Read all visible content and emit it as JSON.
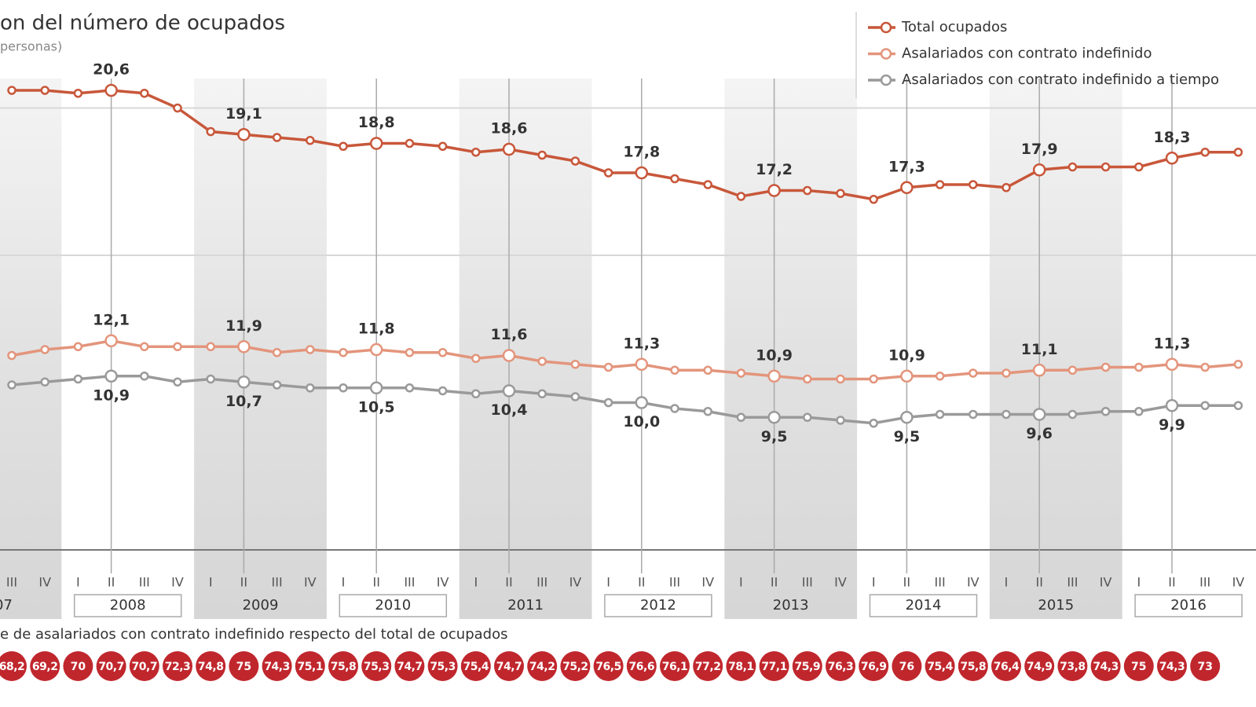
{
  "chart_data": {
    "type": "line",
    "title": "on del número de ocupados",
    "subtitle": "personas)",
    "categories": [
      "III",
      "IV",
      "I",
      "II",
      "III",
      "IV",
      "I",
      "II",
      "III",
      "IV",
      "I",
      "II",
      "III",
      "IV",
      "I",
      "II",
      "III",
      "IV",
      "I",
      "II",
      "III",
      "IV",
      "I",
      "II",
      "III",
      "IV",
      "I",
      "II",
      "III",
      "IV",
      "I",
      "II",
      "III",
      "IV",
      "I",
      "II",
      "III",
      "IV"
    ],
    "years": [
      "07",
      "2008",
      "2009",
      "2010",
      "2011",
      "2012",
      "2013",
      "2014",
      "2015",
      "2016"
    ],
    "ylim": [
      5,
      22
    ],
    "yticks": [
      15,
      20
    ],
    "grid": true,
    "series": [
      {
        "name": "Total ocupados",
        "color": "#c8573a",
        "values": [
          20.6,
          20.6,
          20.5,
          20.6,
          20.5,
          20.0,
          19.2,
          19.1,
          19.0,
          18.9,
          18.7,
          18.8,
          18.8,
          18.7,
          18.5,
          18.6,
          18.4,
          18.2,
          17.8,
          17.8,
          17.6,
          17.4,
          17.0,
          17.2,
          17.2,
          17.1,
          16.9,
          17.3,
          17.4,
          17.4,
          17.3,
          17.9,
          18.0,
          18.0,
          18.0,
          18.3,
          18.5,
          18.5
        ],
        "value_labels": [
          null,
          null,
          null,
          "20,6",
          null,
          null,
          null,
          "19,1",
          null,
          null,
          null,
          "18,8",
          null,
          null,
          null,
          "18,6",
          null,
          null,
          null,
          "17,8",
          null,
          null,
          null,
          "17,2",
          null,
          null,
          null,
          "17,3",
          null,
          null,
          null,
          "17,9",
          null,
          null,
          null,
          "18,3",
          null,
          null
        ]
      },
      {
        "name": "Asalariados con contrato indefinido",
        "color": "#e3957c",
        "values": [
          11.6,
          11.8,
          11.9,
          12.1,
          11.9,
          11.9,
          11.9,
          11.9,
          11.7,
          11.8,
          11.7,
          11.8,
          11.7,
          11.7,
          11.5,
          11.6,
          11.4,
          11.3,
          11.2,
          11.3,
          11.1,
          11.1,
          11.0,
          10.9,
          10.8,
          10.8,
          10.8,
          10.9,
          10.9,
          11.0,
          11.0,
          11.1,
          11.1,
          11.2,
          11.2,
          11.3,
          11.2,
          11.3
        ],
        "value_labels": [
          null,
          null,
          null,
          "12,1",
          null,
          null,
          null,
          "11,9",
          null,
          null,
          null,
          "11,8",
          null,
          null,
          null,
          "11,6",
          null,
          null,
          null,
          "11,3",
          null,
          null,
          null,
          "10,9",
          null,
          null,
          null,
          "10,9",
          null,
          null,
          null,
          "11,1",
          null,
          null,
          null,
          "11,3",
          null,
          null
        ]
      },
      {
        "name": "Asalariados con contrato indefinido a tiempo",
        "color": "#9a9a9a",
        "values": [
          10.6,
          10.7,
          10.8,
          10.9,
          10.9,
          10.7,
          10.8,
          10.7,
          10.6,
          10.5,
          10.5,
          10.5,
          10.5,
          10.4,
          10.3,
          10.4,
          10.3,
          10.2,
          10.0,
          10.0,
          9.8,
          9.7,
          9.5,
          9.5,
          9.5,
          9.4,
          9.3,
          9.5,
          9.6,
          9.6,
          9.6,
          9.6,
          9.6,
          9.7,
          9.7,
          9.9,
          9.9,
          9.9
        ],
        "value_labels": [
          null,
          null,
          null,
          "10,9",
          null,
          null,
          null,
          "10,7",
          null,
          null,
          null,
          "10,5",
          null,
          null,
          null,
          "10,4",
          null,
          null,
          null,
          "10,0",
          null,
          null,
          null,
          "9,5",
          null,
          null,
          null,
          "9,5",
          null,
          null,
          null,
          "9,6",
          null,
          null,
          null,
          "9,9",
          null,
          null
        ]
      }
    ],
    "ratio": {
      "title": "e de asalariados con contrato indefinido respecto del total de ocupados",
      "color": "#c0272d",
      "values": [
        68.2,
        69.2,
        70,
        70.7,
        70.7,
        72.3,
        74.8,
        75,
        74.3,
        75.1,
        75.8,
        75.3,
        74.7,
        75.3,
        75.4,
        74.7,
        74.2,
        75.2,
        76.5,
        76.6,
        76.1,
        77.2,
        78.1,
        77.1,
        75.9,
        76.3,
        76.9,
        76,
        75.4,
        75.8,
        76.4,
        74.9,
        73.8,
        74.3,
        75,
        74.3,
        73,
        null
      ],
      "value_labels": [
        "68,2",
        "69,2",
        null,
        "70,7",
        "70,7",
        "72,3",
        "74,8",
        null,
        "74,3",
        "75,1",
        "75,8",
        "75,3",
        "74,7",
        "75,3",
        "75,4",
        "74,7",
        "74,2",
        "75,2",
        "76,5",
        "76,6",
        "76,1",
        "77,2",
        "78,1",
        "77,1",
        "75,9",
        "76,3",
        "76,9",
        null,
        "75,4",
        "75,8",
        "76,4",
        "74,9",
        "73,8",
        "74,3",
        null,
        "74,3",
        null,
        null
      ]
    }
  }
}
